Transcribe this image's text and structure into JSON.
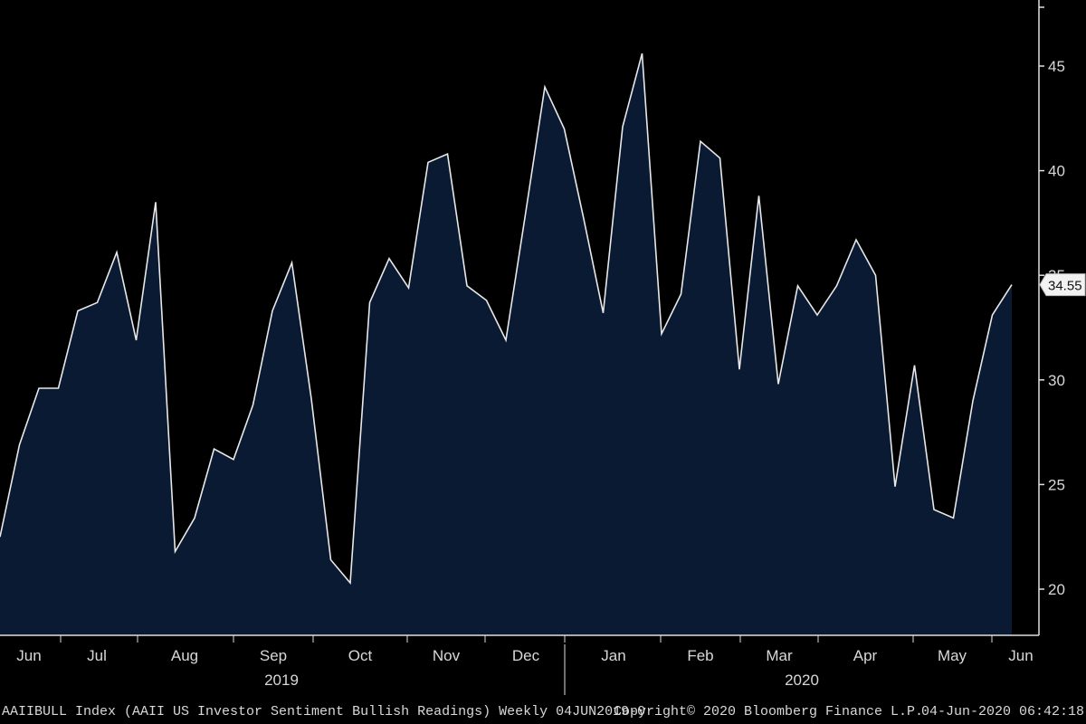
{
  "chart_data": {
    "type": "area",
    "title": "",
    "xlabel": "",
    "ylabel": "",
    "ylim": [
      17.5,
      48
    ],
    "y_ticks": [
      20,
      25,
      30,
      35,
      40,
      45
    ],
    "y_tick_labels": [
      "20",
      "25",
      "30",
      "35",
      "40",
      "45"
    ],
    "x_tick_labels": [
      "Jun",
      "Jul",
      "Aug",
      "Sep",
      "Oct",
      "Nov",
      "Dec",
      "Jan",
      "Feb",
      "Mar",
      "Apr",
      "May",
      "Jun"
    ],
    "year_labels": [
      "2019",
      "2020"
    ],
    "last_value_label": "34.55",
    "colors": {
      "fill": "#0a1a33",
      "line": "#e8e8e8",
      "background": "#000000"
    },
    "series": [
      {
        "values": [
          22.5,
          26.9,
          29.6,
          29.6,
          33.3,
          33.7,
          36.1,
          31.9,
          38.5,
          21.8,
          23.4,
          26.7,
          26.2,
          28.8,
          33.3,
          35.6,
          29.1,
          21.4,
          20.3,
          33.7,
          35.8,
          34.4,
          40.4,
          40.8,
          34.5,
          33.8,
          31.9,
          37.9,
          44.0,
          42.0,
          37.7,
          33.2,
          42.1,
          45.6,
          32.2,
          34.1,
          41.4,
          40.6,
          30.5,
          38.8,
          29.8,
          34.5,
          33.1,
          34.5,
          36.7,
          35.0,
          24.9,
          30.7,
          23.8,
          23.4,
          29.0,
          33.1,
          34.55
        ]
      }
    ]
  },
  "footer": {
    "left": "AAIIBULL Index (AAII US Investor Sentiment Bullish Readings) Weekly 04JUN2019-0",
    "middle": "Copyright© 2020 Bloomberg Finance L.P.",
    "right": "04-Jun-2020 06:42:18"
  }
}
